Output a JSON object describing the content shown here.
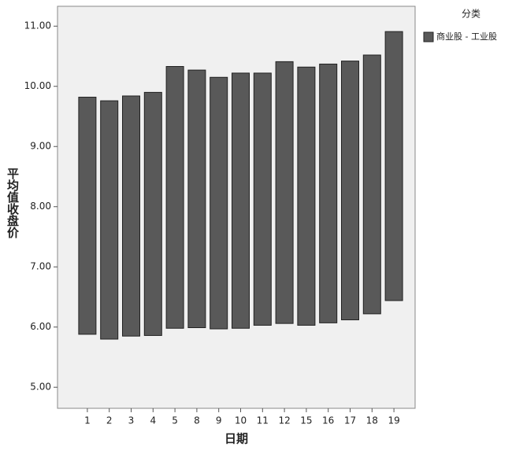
{
  "chart_data": {
    "type": "range_bar",
    "x_label": "日期",
    "y_label": "平均值收盘价",
    "legend_title": "分类",
    "legend_position": "right",
    "categories": [
      "1",
      "2",
      "3",
      "4",
      "5",
      "8",
      "9",
      "10",
      "11",
      "12",
      "15",
      "16",
      "17",
      "18",
      "19"
    ],
    "series": [
      {
        "name": "商业股 - 工业股",
        "color": "#595959",
        "low": [
          5.88,
          5.8,
          5.85,
          5.86,
          5.98,
          5.99,
          5.97,
          5.98,
          6.03,
          6.06,
          6.03,
          6.07,
          6.12,
          6.22,
          6.44
        ],
        "high": [
          9.82,
          9.76,
          9.84,
          9.9,
          10.33,
          10.27,
          10.15,
          10.22,
          10.22,
          10.41,
          10.32,
          10.37,
          10.42,
          10.52,
          10.91
        ]
      }
    ],
    "ylim": [
      4.65,
      11.33
    ],
    "yticks": [
      {
        "value": 5,
        "label": "5.00"
      },
      {
        "value": 6,
        "label": "6.00"
      },
      {
        "value": 7,
        "label": "7.00"
      },
      {
        "value": 8,
        "label": "8.00"
      },
      {
        "value": 9,
        "label": "9.00"
      },
      {
        "value": 10,
        "label": "10.00"
      },
      {
        "value": 11,
        "label": "11.00"
      }
    ]
  }
}
